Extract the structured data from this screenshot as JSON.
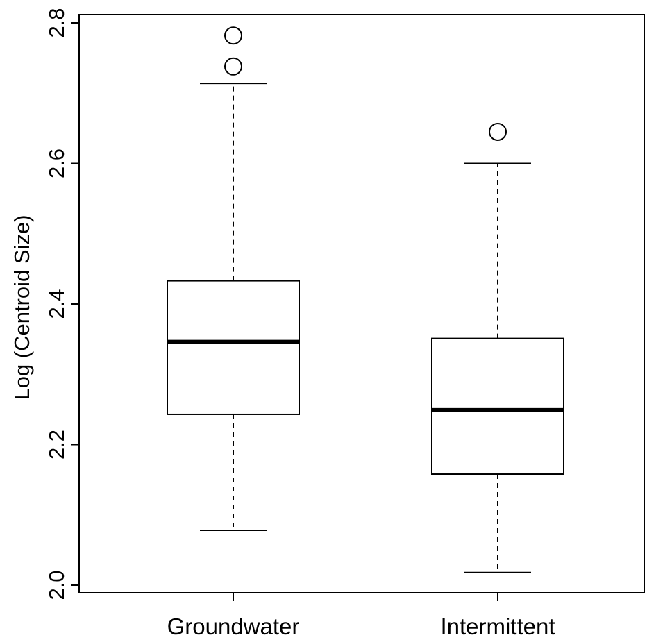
{
  "chart_data": {
    "type": "boxplot",
    "title": "",
    "xlabel": "",
    "ylabel": "Log (Centroid Size)",
    "ylim": [
      2.0,
      2.8
    ],
    "yticks": [
      "2.0",
      "2.2",
      "2.4",
      "2.6",
      "2.8"
    ],
    "grid": false,
    "categories": [
      "Groundwater",
      "Intermittent"
    ],
    "boxes": [
      {
        "name": "Groundwater",
        "whisker_low": 2.078,
        "q1": 2.243,
        "median": 2.346,
        "q3": 2.433,
        "whisker_high": 2.714,
        "outliers": [
          2.738,
          2.782
        ]
      },
      {
        "name": "Intermittent",
        "whisker_low": 2.018,
        "q1": 2.158,
        "median": 2.249,
        "q3": 2.351,
        "whisker_high": 2.6,
        "outliers": [
          2.645
        ]
      }
    ],
    "colors": {
      "stroke": "#000000",
      "fill": "#ffffff"
    }
  }
}
